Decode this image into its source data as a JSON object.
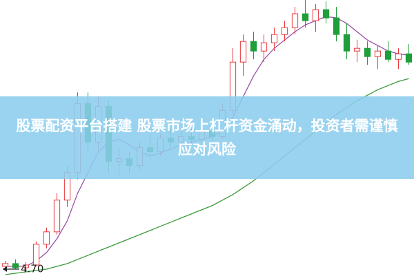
{
  "chart_data": {
    "type": "candlestick",
    "title": "股票配资平台搭建 股票市场上杠杆资金涌动，投资者需谨慎应对风险",
    "up_color": "#e8383d",
    "down_color": "#1f9e3a",
    "ylim": [
      4.65,
      6.65
    ],
    "marker": {
      "value": 4.7,
      "label": "4.70"
    },
    "candles": [
      [
        4.72,
        4.76,
        4.69,
        4.74
      ],
      [
        4.74,
        4.77,
        4.7,
        4.71
      ],
      [
        4.71,
        4.75,
        4.68,
        4.73
      ],
      [
        4.73,
        4.9,
        4.72,
        4.88
      ],
      [
        4.88,
        5.0,
        4.85,
        4.97
      ],
      [
        4.97,
        5.25,
        4.95,
        5.2
      ],
      [
        5.2,
        5.45,
        5.15,
        5.4
      ],
      [
        5.4,
        5.98,
        5.35,
        5.9
      ],
      [
        5.9,
        5.98,
        5.55,
        5.62
      ],
      [
        5.62,
        5.95,
        5.55,
        5.88
      ],
      [
        5.88,
        5.92,
        5.4,
        5.48
      ],
      [
        5.48,
        5.58,
        5.38,
        5.5
      ],
      [
        5.5,
        5.55,
        5.4,
        5.45
      ],
      [
        5.45,
        5.62,
        5.42,
        5.58
      ],
      [
        5.58,
        5.7,
        5.5,
        5.55
      ],
      [
        5.55,
        5.68,
        5.52,
        5.65
      ],
      [
        5.65,
        5.72,
        5.58,
        5.62
      ],
      [
        5.62,
        5.7,
        5.55,
        5.66
      ],
      [
        5.66,
        5.72,
        5.6,
        5.64
      ],
      [
        5.64,
        5.75,
        5.62,
        5.7
      ],
      [
        5.7,
        5.74,
        5.62,
        5.66
      ],
      [
        5.66,
        5.9,
        5.64,
        5.85
      ],
      [
        5.85,
        6.3,
        5.82,
        6.2
      ],
      [
        6.2,
        6.4,
        6.1,
        6.35
      ],
      [
        6.35,
        6.42,
        6.22,
        6.28
      ],
      [
        6.28,
        6.4,
        6.2,
        6.34
      ],
      [
        6.34,
        6.45,
        6.28,
        6.4
      ],
      [
        6.4,
        6.5,
        6.35,
        6.45
      ],
      [
        6.45,
        6.6,
        6.4,
        6.55
      ],
      [
        6.55,
        6.65,
        6.45,
        6.5
      ],
      [
        6.5,
        6.62,
        6.42,
        6.58
      ],
      [
        6.58,
        6.64,
        6.48,
        6.52
      ],
      [
        6.52,
        6.6,
        6.35,
        6.4
      ],
      [
        6.4,
        6.48,
        6.22,
        6.28
      ],
      [
        6.28,
        6.36,
        6.2,
        6.3
      ],
      [
        6.3,
        6.35,
        6.18,
        6.24
      ],
      [
        6.24,
        6.32,
        6.15,
        6.28
      ],
      [
        6.28,
        6.35,
        6.2,
        6.22
      ],
      [
        6.22,
        6.3,
        6.15,
        6.26
      ],
      [
        6.26,
        6.33,
        6.18,
        6.2
      ]
    ],
    "series": [
      {
        "color": "#9b4fa8",
        "values": [
          4.72,
          4.72,
          4.72,
          4.76,
          4.82,
          4.92,
          5.05,
          5.25,
          5.4,
          5.55,
          5.62,
          5.64,
          5.6,
          5.55,
          5.52,
          5.54,
          5.57,
          5.6,
          5.62,
          5.64,
          5.66,
          5.7,
          5.8,
          5.95,
          6.1,
          6.22,
          6.3,
          6.36,
          6.42,
          6.47,
          6.5,
          6.53,
          6.52,
          6.48,
          6.42,
          6.36,
          6.32,
          6.28,
          6.26,
          6.25
        ]
      },
      {
        "color": "#3a9a3a",
        "values": [
          4.66,
          4.67,
          4.68,
          4.69,
          4.7,
          4.72,
          4.74,
          4.77,
          4.8,
          4.83,
          4.86,
          4.89,
          4.92,
          4.95,
          4.98,
          5.01,
          5.04,
          5.07,
          5.1,
          5.13,
          5.16,
          5.2,
          5.24,
          5.29,
          5.34,
          5.4,
          5.46,
          5.52,
          5.58,
          5.64,
          5.7,
          5.76,
          5.82,
          5.87,
          5.92,
          5.96,
          6.0,
          6.03,
          6.06,
          6.08
        ]
      }
    ]
  }
}
